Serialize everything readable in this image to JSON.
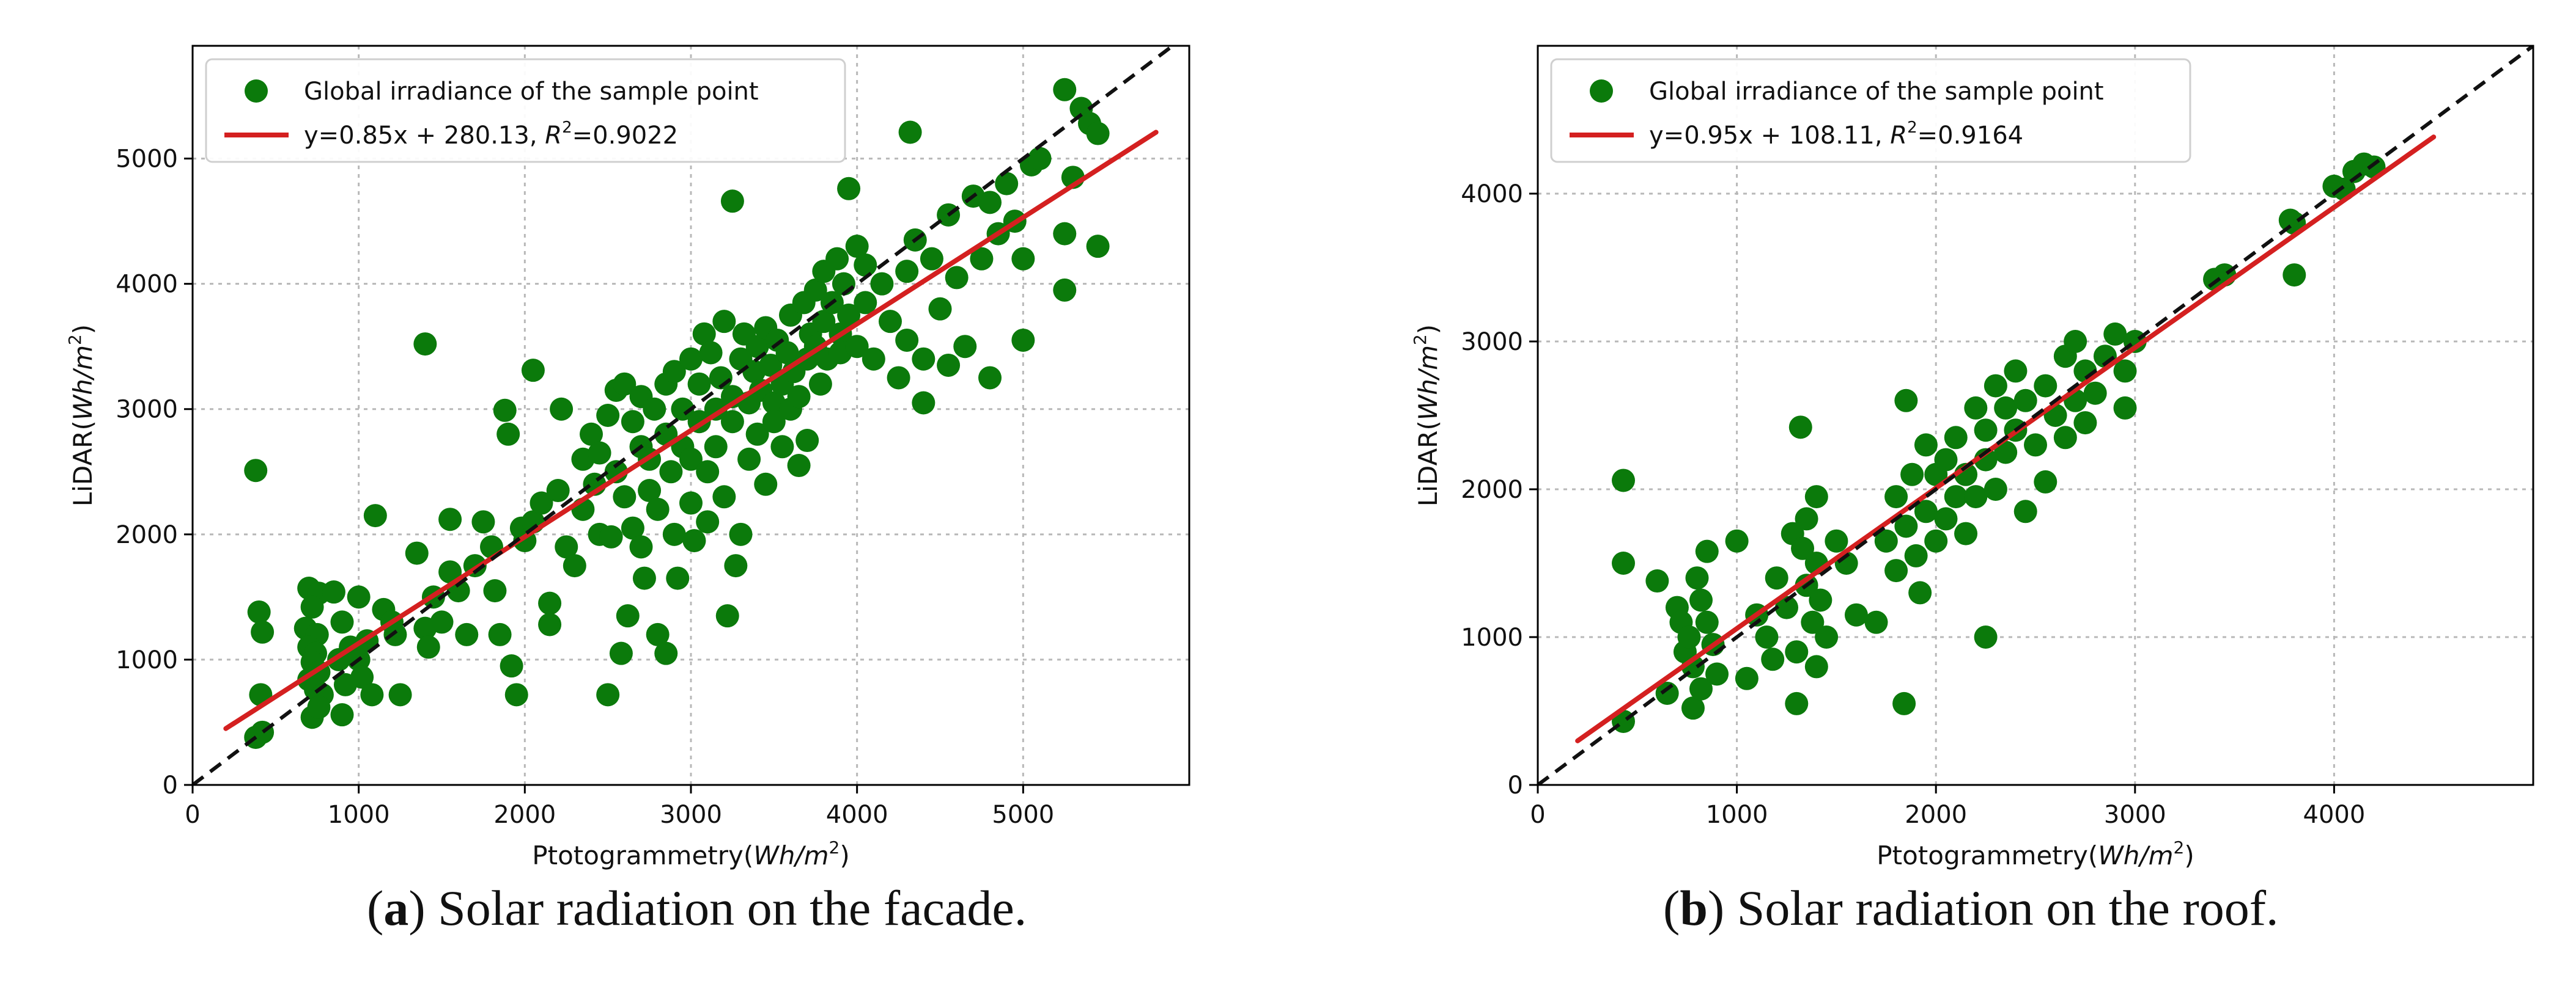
{
  "chart_data": [
    {
      "type": "scatter",
      "panel": "a",
      "xlabel": "Ptotogrammetry",
      "xunit": "Wh/m",
      "ylabel": "LiDAR",
      "yunit": "Wh/m",
      "unit_exp": "2",
      "xlim": [
        0,
        6000
      ],
      "ylim": [
        0,
        5900
      ],
      "xticks": [
        0,
        1000,
        2000,
        3000,
        4000,
        5000
      ],
      "yticks": [
        0,
        1000,
        2000,
        3000,
        4000,
        5000
      ],
      "grid": true,
      "legend_position": "top-left",
      "legend": {
        "points_label": "Global irradiance of the sample point",
        "fit_label": "y=0.85x + 280.13, ",
        "r2_symbol": "R",
        "r2_exp": "2",
        "r2_value": "=0.9022"
      },
      "fit": {
        "slope": 0.85,
        "intercept": 280.13,
        "x_range": [
          200,
          5800
        ]
      },
      "identity_line": true,
      "colors": {
        "points": "#0b7a0b",
        "fit": "#d42020",
        "identity": "#111111"
      },
      "caption": {
        "letter": "a",
        "text": ") Solar radiation on the facade."
      },
      "points": [
        [
          380,
          2510
        ],
        [
          400,
          1380
        ],
        [
          420,
          1220
        ],
        [
          410,
          720
        ],
        [
          380,
          380
        ],
        [
          420,
          420
        ],
        [
          700,
          1570
        ],
        [
          760,
          1530
        ],
        [
          720,
          1420
        ],
        [
          680,
          1250
        ],
        [
          750,
          1200
        ],
        [
          700,
          1100
        ],
        [
          740,
          1050
        ],
        [
          720,
          980
        ],
        [
          760,
          900
        ],
        [
          700,
          840
        ],
        [
          740,
          760
        ],
        [
          780,
          720
        ],
        [
          720,
          540
        ],
        [
          760,
          620
        ],
        [
          850,
          1540
        ],
        [
          900,
          1300
        ],
        [
          950,
          1100
        ],
        [
          880,
          1000
        ],
        [
          920,
          800
        ],
        [
          900,
          560
        ],
        [
          1000,
          1500
        ],
        [
          1050,
          1150
        ],
        [
          1000,
          1000
        ],
        [
          1100,
          2150
        ],
        [
          1020,
          860
        ],
        [
          1080,
          720
        ],
        [
          1150,
          1400
        ],
        [
          1200,
          1300
        ],
        [
          1220,
          1200
        ],
        [
          1250,
          720
        ],
        [
          1350,
          1850
        ],
        [
          1400,
          3520
        ],
        [
          1450,
          1500
        ],
        [
          1400,
          1250
        ],
        [
          1420,
          1100
        ],
        [
          1500,
          1300
        ],
        [
          1550,
          2120
        ],
        [
          1550,
          1700
        ],
        [
          1600,
          1550
        ],
        [
          1650,
          1200
        ],
        [
          1700,
          1750
        ],
        [
          1750,
          2100
        ],
        [
          1800,
          1900
        ],
        [
          1820,
          1550
        ],
        [
          1850,
          1200
        ],
        [
          1880,
          2990
        ],
        [
          1900,
          2800
        ],
        [
          1920,
          950
        ],
        [
          1950,
          720
        ],
        [
          1980,
          2050
        ],
        [
          2000,
          1950
        ],
        [
          2050,
          3310
        ],
        [
          2050,
          2100
        ],
        [
          2100,
          2250
        ],
        [
          2150,
          1450
        ],
        [
          2150,
          1280
        ],
        [
          2200,
          2350
        ],
        [
          2220,
          3000
        ],
        [
          2250,
          1900
        ],
        [
          2300,
          1750
        ],
        [
          2350,
          2600
        ],
        [
          2350,
          2200
        ],
        [
          2400,
          2800
        ],
        [
          2420,
          2400
        ],
        [
          2450,
          2650
        ],
        [
          2450,
          2000
        ],
        [
          2500,
          2950
        ],
        [
          2500,
          720
        ],
        [
          2520,
          1980
        ],
        [
          2550,
          3150
        ],
        [
          2550,
          2500
        ],
        [
          2580,
          1050
        ],
        [
          2600,
          3200
        ],
        [
          2600,
          2300
        ],
        [
          2620,
          1350
        ],
        [
          2650,
          2900
        ],
        [
          2650,
          2050
        ],
        [
          2700,
          3100
        ],
        [
          2700,
          2700
        ],
        [
          2700,
          1900
        ],
        [
          2720,
          1650
        ],
        [
          2750,
          2600
        ],
        [
          2750,
          2350
        ],
        [
          2780,
          3000
        ],
        [
          2800,
          2200
        ],
        [
          2800,
          1200
        ],
        [
          2850,
          3200
        ],
        [
          2850,
          2800
        ],
        [
          2850,
          1050
        ],
        [
          2880,
          2500
        ],
        [
          2900,
          3300
        ],
        [
          2900,
          2000
        ],
        [
          2920,
          1650
        ],
        [
          2950,
          3000
        ],
        [
          2950,
          2700
        ],
        [
          3000,
          3400
        ],
        [
          3000,
          2600
        ],
        [
          3000,
          2250
        ],
        [
          3020,
          1950
        ],
        [
          3050,
          3200
        ],
        [
          3050,
          2900
        ],
        [
          3080,
          3600
        ],
        [
          3100,
          2500
        ],
        [
          3100,
          2100
        ],
        [
          3120,
          3450
        ],
        [
          3150,
          3000
        ],
        [
          3150,
          2700
        ],
        [
          3180,
          3250
        ],
        [
          3200,
          3700
        ],
        [
          3200,
          2300
        ],
        [
          3220,
          1350
        ],
        [
          3250,
          4660
        ],
        [
          3250,
          3100
        ],
        [
          3250,
          2900
        ],
        [
          3270,
          1750
        ],
        [
          3300,
          3400
        ],
        [
          3300,
          2000
        ],
        [
          3320,
          3600
        ],
        [
          3350,
          3050
        ],
        [
          3350,
          2600
        ],
        [
          3380,
          3300
        ],
        [
          3400,
          3500
        ],
        [
          3400,
          2800
        ],
        [
          3420,
          3150
        ],
        [
          3450,
          3650
        ],
        [
          3450,
          2400
        ],
        [
          3480,
          3350
        ],
        [
          3500,
          3050
        ],
        [
          3500,
          2900
        ],
        [
          3520,
          3550
        ],
        [
          3550,
          3200
        ],
        [
          3550,
          2700
        ],
        [
          3580,
          3450
        ],
        [
          3600,
          3750
        ],
        [
          3600,
          3000
        ],
        [
          3620,
          3300
        ],
        [
          3650,
          3100
        ],
        [
          3650,
          2550
        ],
        [
          3680,
          3850
        ],
        [
          3700,
          3400
        ],
        [
          3700,
          2750
        ],
        [
          3720,
          3600
        ],
        [
          3750,
          3950
        ],
        [
          3750,
          3500
        ],
        [
          3780,
          3200
        ],
        [
          3800,
          4100
        ],
        [
          3800,
          3700
        ],
        [
          3820,
          3400
        ],
        [
          3850,
          3850
        ],
        [
          3880,
          4200
        ],
        [
          3900,
          3600
        ],
        [
          3900,
          3450
        ],
        [
          3920,
          4000
        ],
        [
          3950,
          4760
        ],
        [
          3950,
          3750
        ],
        [
          4000,
          4300
        ],
        [
          4000,
          3500
        ],
        [
          4050,
          4150
        ],
        [
          4050,
          3850
        ],
        [
          4100,
          3400
        ],
        [
          4150,
          4000
        ],
        [
          4200,
          3700
        ],
        [
          4250,
          3250
        ],
        [
          4300,
          4100
        ],
        [
          4300,
          3550
        ],
        [
          4320,
          5210
        ],
        [
          4350,
          4350
        ],
        [
          4400,
          3400
        ],
        [
          4400,
          3050
        ],
        [
          4450,
          4200
        ],
        [
          4500,
          3800
        ],
        [
          4550,
          4550
        ],
        [
          4550,
          3350
        ],
        [
          4600,
          4050
        ],
        [
          4650,
          3500
        ],
        [
          4700,
          4700
        ],
        [
          4750,
          4200
        ],
        [
          4800,
          4650
        ],
        [
          4800,
          3250
        ],
        [
          4850,
          4400
        ],
        [
          4900,
          4800
        ],
        [
          4950,
          4500
        ],
        [
          5000,
          3550
        ],
        [
          5000,
          4200
        ],
        [
          5050,
          4950
        ],
        [
          5100,
          5000
        ],
        [
          5250,
          5550
        ],
        [
          5250,
          4400
        ],
        [
          5250,
          3950
        ],
        [
          5300,
          4850
        ],
        [
          5350,
          5400
        ],
        [
          5400,
          5280
        ],
        [
          5450,
          4300
        ],
        [
          5450,
          5200
        ]
      ]
    },
    {
      "type": "scatter",
      "panel": "b",
      "xlabel": "Ptotogrammetry",
      "xunit": "Wh/m",
      "ylabel": "LiDAR",
      "yunit": "Wh/m",
      "unit_exp": "2",
      "xlim": [
        0,
        5000
      ],
      "ylim": [
        0,
        5000
      ],
      "xticks": [
        0,
        1000,
        2000,
        3000,
        4000
      ],
      "yticks": [
        0,
        1000,
        2000,
        3000,
        4000
      ],
      "grid": true,
      "legend_position": "top-left",
      "legend": {
        "points_label": "Global irradiance of the sample point",
        "fit_label": "y=0.95x + 108.11, ",
        "r2_symbol": "R",
        "r2_exp": "2",
        "r2_value": "=0.9164"
      },
      "fit": {
        "slope": 0.95,
        "intercept": 108.11,
        "x_range": [
          200,
          4500
        ]
      },
      "identity_line": true,
      "colors": {
        "points": "#0b7a0b",
        "fit": "#d42020",
        "identity": "#111111"
      },
      "caption": {
        "letter": "b",
        "text": ") Solar radiation on the roof."
      },
      "points": [
        [
          430,
          2060
        ],
        [
          430,
          1500
        ],
        [
          430,
          430
        ],
        [
          600,
          1380
        ],
        [
          650,
          620
        ],
        [
          700,
          1200
        ],
        [
          720,
          1100
        ],
        [
          740,
          900
        ],
        [
          760,
          1000
        ],
        [
          780,
          800
        ],
        [
          780,
          520
        ],
        [
          800,
          1400
        ],
        [
          820,
          1250
        ],
        [
          820,
          650
        ],
        [
          850,
          1580
        ],
        [
          850,
          1100
        ],
        [
          880,
          950
        ],
        [
          900,
          750
        ],
        [
          1000,
          1650
        ],
        [
          1050,
          720
        ],
        [
          1100,
          1150
        ],
        [
          1150,
          1000
        ],
        [
          1180,
          850
        ],
        [
          1200,
          1400
        ],
        [
          1250,
          1200
        ],
        [
          1280,
          1700
        ],
        [
          1300,
          900
        ],
        [
          1300,
          550
        ],
        [
          1320,
          2420
        ],
        [
          1330,
          1600
        ],
        [
          1350,
          1800
        ],
        [
          1350,
          1350
        ],
        [
          1380,
          1100
        ],
        [
          1400,
          1500
        ],
        [
          1400,
          1950
        ],
        [
          1400,
          800
        ],
        [
          1420,
          1250
        ],
        [
          1450,
          1000
        ],
        [
          1500,
          1650
        ],
        [
          1550,
          1500
        ],
        [
          1600,
          1150
        ],
        [
          1700,
          1100
        ],
        [
          1750,
          1650
        ],
        [
          1800,
          1950
        ],
        [
          1800,
          1450
        ],
        [
          1840,
          550
        ],
        [
          1850,
          2600
        ],
        [
          1850,
          1750
        ],
        [
          1880,
          2100
        ],
        [
          1900,
          1550
        ],
        [
          1920,
          1300
        ],
        [
          1950,
          2300
        ],
        [
          1950,
          1850
        ],
        [
          2000,
          2100
        ],
        [
          2000,
          1650
        ],
        [
          2050,
          2200
        ],
        [
          2050,
          1800
        ],
        [
          2100,
          2350
        ],
        [
          2100,
          1950
        ],
        [
          2150,
          2100
        ],
        [
          2150,
          1700
        ],
        [
          2200,
          2550
        ],
        [
          2200,
          1950
        ],
        [
          2250,
          2400
        ],
        [
          2250,
          2200
        ],
        [
          2250,
          1000
        ],
        [
          2300,
          2700
        ],
        [
          2300,
          2000
        ],
        [
          2350,
          2550
        ],
        [
          2350,
          2250
        ],
        [
          2400,
          2800
        ],
        [
          2400,
          2400
        ],
        [
          2450,
          2600
        ],
        [
          2450,
          1850
        ],
        [
          2500,
          2300
        ],
        [
          2550,
          2700
        ],
        [
          2550,
          2050
        ],
        [
          2600,
          2500
        ],
        [
          2650,
          2900
        ],
        [
          2650,
          2350
        ],
        [
          2700,
          3000
        ],
        [
          2700,
          2600
        ],
        [
          2750,
          2800
        ],
        [
          2750,
          2450
        ],
        [
          2800,
          2650
        ],
        [
          2850,
          2900
        ],
        [
          2900,
          3050
        ],
        [
          2950,
          2800
        ],
        [
          2950,
          2550
        ],
        [
          3000,
          3000
        ],
        [
          3400,
          3420
        ],
        [
          3450,
          3450
        ],
        [
          3780,
          3820
        ],
        [
          3800,
          3800
        ],
        [
          3800,
          3450
        ],
        [
          4000,
          4050
        ],
        [
          4050,
          4030
        ],
        [
          4100,
          4150
        ],
        [
          4150,
          4200
        ],
        [
          4200,
          4180
        ]
      ]
    }
  ]
}
